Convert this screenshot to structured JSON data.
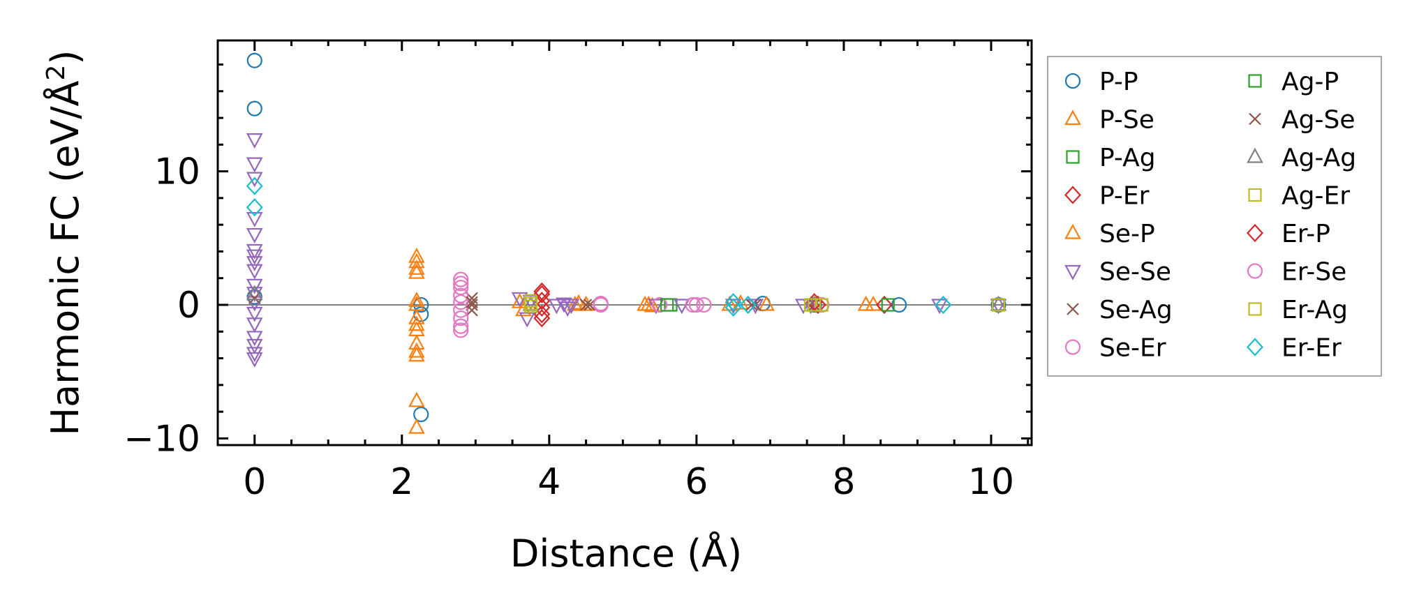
{
  "chart_data": {
    "type": "scatter",
    "title": "",
    "xlabel": "Distance (Å)",
    "ylabel_main": "Harmonic FC (eV/Å",
    "ylabel_sup": "2",
    "ylabel_close": ")",
    "xlim": [
      -0.5,
      10.55
    ],
    "ylim": [
      -10.5,
      19.8
    ],
    "xticks": [
      0,
      2,
      4,
      6,
      8,
      10
    ],
    "xtick_labels": [
      "0",
      "2",
      "4",
      "6",
      "8",
      "10"
    ],
    "yticks": [
      -10,
      0,
      10
    ],
    "ytick_labels": [
      "−10",
      "0",
      "10"
    ],
    "zero_line": true,
    "legend_position": "outside-right",
    "series": [
      {
        "name": "P-P",
        "marker": "circle",
        "color": "#1f77b4",
        "points": [
          [
            0,
            18.3
          ],
          [
            0,
            14.7
          ],
          [
            0,
            0.6
          ],
          [
            2.26,
            0
          ],
          [
            2.26,
            -0.7
          ],
          [
            2.26,
            -8.2
          ],
          [
            6.9,
            0.1
          ],
          [
            7.6,
            0
          ],
          [
            8.75,
            0
          ],
          [
            10.1,
            0
          ]
        ]
      },
      {
        "name": "P-Se",
        "marker": "triangle-up",
        "color": "#ff7f0e",
        "points": [
          [
            2.2,
            3.6
          ],
          [
            2.2,
            3.2
          ],
          [
            2.2,
            2.7
          ],
          [
            2.2,
            0.3
          ],
          [
            2.2,
            -1.0
          ],
          [
            2.2,
            -1.9
          ],
          [
            2.2,
            -2.9
          ],
          [
            2.2,
            -3.5
          ],
          [
            2.2,
            -7.2
          ],
          [
            3.6,
            0.2
          ],
          [
            3.65,
            -0.4
          ],
          [
            4.4,
            0.1
          ],
          [
            4.5,
            0
          ],
          [
            5.3,
            0
          ],
          [
            5.4,
            -0.1
          ],
          [
            6.45,
            0
          ],
          [
            6.6,
            0.1
          ],
          [
            6.95,
            0
          ],
          [
            8.3,
            0
          ],
          [
            8.4,
            0
          ]
        ]
      },
      {
        "name": "P-Ag",
        "marker": "square",
        "color": "#2ca02c",
        "points": [
          [
            5.65,
            0
          ],
          [
            7.6,
            0
          ]
        ]
      },
      {
        "name": "P-Er",
        "marker": "diamond",
        "color": "#d62728",
        "points": [
          [
            3.9,
            0.8
          ],
          [
            3.9,
            0.3
          ],
          [
            3.9,
            -0.2
          ],
          [
            3.9,
            -0.7
          ],
          [
            7.65,
            0
          ],
          [
            8.55,
            0
          ]
        ]
      },
      {
        "name": "Se-P",
        "marker": "triangle-up",
        "color": "#ff7f0e",
        "points": [
          [
            2.2,
            2.4
          ],
          [
            2.2,
            0
          ],
          [
            2.2,
            -1.5
          ],
          [
            2.2,
            -3.8
          ],
          [
            2.2,
            -9.2
          ],
          [
            4.35,
            0
          ],
          [
            5.35,
            0
          ]
        ]
      },
      {
        "name": "Se-Se",
        "marker": "triangle-down",
        "color": "#9467bd",
        "points": [
          [
            0,
            12.4
          ],
          [
            0,
            10.6
          ],
          [
            0,
            9.5
          ],
          [
            0,
            6.5
          ],
          [
            0,
            5.3
          ],
          [
            0,
            4.1
          ],
          [
            0,
            3.7
          ],
          [
            0,
            3.2
          ],
          [
            0,
            2.6
          ],
          [
            0,
            1.5
          ],
          [
            0,
            0.9
          ],
          [
            0,
            0.2
          ],
          [
            0,
            -0.6
          ],
          [
            0,
            -1.4
          ],
          [
            0,
            -2.4
          ],
          [
            0,
            -3.0
          ],
          [
            0,
            -3.6
          ],
          [
            0,
            -4.0
          ],
          [
            3.6,
            0.5
          ],
          [
            3.7,
            -1.0
          ],
          [
            3.75,
            0.3
          ],
          [
            4.1,
            0
          ],
          [
            4.2,
            0.1
          ],
          [
            4.25,
            -0.2
          ],
          [
            4.3,
            0
          ],
          [
            5.45,
            0
          ],
          [
            5.8,
            0
          ],
          [
            6.5,
            0
          ],
          [
            6.8,
            0
          ],
          [
            7.45,
            0
          ],
          [
            7.55,
            0
          ],
          [
            9.3,
            0
          ],
          [
            10.1,
            0
          ]
        ]
      },
      {
        "name": "Se-Ag",
        "marker": "x",
        "color": "#8c564b",
        "points": [
          [
            0,
            0.5
          ],
          [
            2.95,
            0.5
          ],
          [
            2.95,
            0
          ],
          [
            2.95,
            -0.4
          ],
          [
            4.55,
            0
          ],
          [
            6.8,
            0
          ],
          [
            7.6,
            0
          ]
        ]
      },
      {
        "name": "Se-Er",
        "marker": "circle",
        "color": "#e377c2",
        "points": [
          [
            2.8,
            1.9
          ],
          [
            2.8,
            1.3
          ],
          [
            2.8,
            0.7
          ],
          [
            2.8,
            0.2
          ],
          [
            2.8,
            -0.4
          ],
          [
            2.8,
            -1.0
          ],
          [
            2.8,
            -1.6
          ],
          [
            4.7,
            0
          ],
          [
            5.5,
            0
          ],
          [
            5.95,
            0
          ],
          [
            6.1,
            0
          ],
          [
            7.7,
            0
          ]
        ]
      },
      {
        "name": "Ag-P",
        "marker": "square",
        "color": "#2ca02c",
        "points": [
          [
            5.6,
            0
          ],
          [
            8.6,
            0
          ]
        ]
      },
      {
        "name": "Ag-Se",
        "marker": "x",
        "color": "#8c564b",
        "points": [
          [
            2.95,
            0.2
          ],
          [
            4.5,
            0
          ],
          [
            6.75,
            0
          ]
        ]
      },
      {
        "name": "Ag-Ag",
        "marker": "triangle-up",
        "color": "#7f7f7f",
        "points": [
          [
            0,
            0.8
          ],
          [
            3.75,
            0
          ],
          [
            7.6,
            0
          ],
          [
            10.1,
            0
          ]
        ]
      },
      {
        "name": "Ag-Er",
        "marker": "square",
        "color": "#bcbd22",
        "points": [
          [
            3.75,
            0.3
          ],
          [
            3.75,
            -0.1
          ],
          [
            7.55,
            0
          ],
          [
            7.7,
            0
          ]
        ]
      },
      {
        "name": "Er-P",
        "marker": "diamond",
        "color": "#d62728",
        "points": [
          [
            3.9,
            1.0
          ],
          [
            3.9,
            -1.0
          ],
          [
            7.6,
            0.2
          ]
        ]
      },
      {
        "name": "Er-Se",
        "marker": "circle",
        "color": "#e377c2",
        "points": [
          [
            2.8,
            1.6
          ],
          [
            2.8,
            -1.9
          ],
          [
            4.7,
            0.1
          ],
          [
            6.0,
            0
          ]
        ]
      },
      {
        "name": "Er-Ag",
        "marker": "square",
        "color": "#bcbd22",
        "points": [
          [
            3.75,
            0.1
          ],
          [
            7.6,
            0
          ],
          [
            10.1,
            0
          ]
        ]
      },
      {
        "name": "Er-Er",
        "marker": "diamond",
        "color": "#17becf",
        "points": [
          [
            0,
            8.9
          ],
          [
            0,
            7.3
          ],
          [
            6.5,
            0.2
          ],
          [
            6.5,
            -0.2
          ],
          [
            6.7,
            0
          ],
          [
            9.35,
            0
          ]
        ]
      }
    ]
  }
}
